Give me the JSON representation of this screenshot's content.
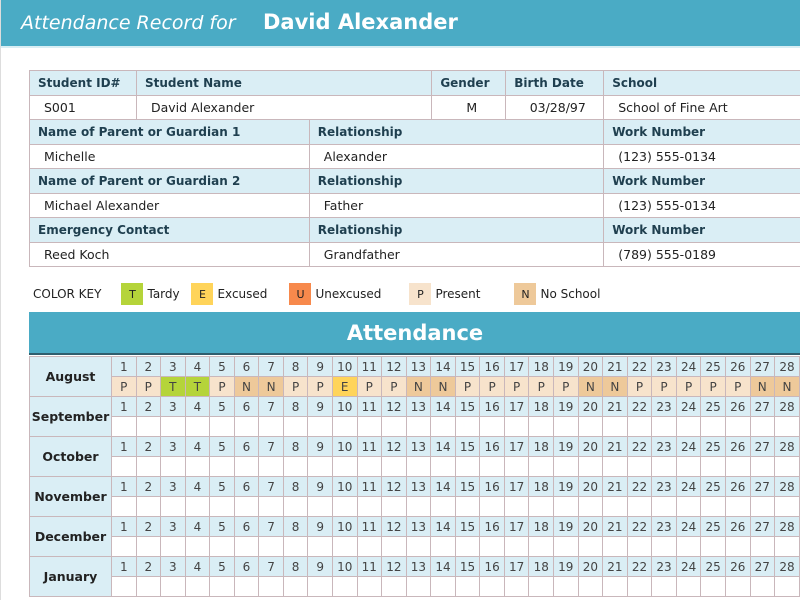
{
  "title": {
    "prefix": "Attendance Record for",
    "name": "David Alexander"
  },
  "student": {
    "headers": [
      "Student ID#",
      "Student Name",
      "Gender",
      "Birth Date",
      "School"
    ],
    "values": [
      "S001",
      "David Alexander",
      "M",
      "03/28/97",
      "School of Fine Art"
    ]
  },
  "contacts": [
    {
      "h": [
        "Name of Parent or Guardian 1",
        "Relationship",
        "Work Number"
      ],
      "v": [
        "Michelle",
        "Alexander",
        "(123) 555-0134"
      ]
    },
    {
      "h": [
        "Name of Parent or Guardian 2",
        "Relationship",
        "Work Number"
      ],
      "v": [
        "Michael Alexander",
        "Father",
        "(123) 555-0134"
      ]
    },
    {
      "h": [
        "Emergency Contact",
        "Relationship",
        "Work Number"
      ],
      "v": [
        "Reed Koch",
        "Grandfather",
        "(789) 555-0189"
      ]
    }
  ],
  "color_key": {
    "label": "COLOR KEY",
    "items": [
      {
        "code": "T",
        "label": "Tardy",
        "color": "#b5d43a"
      },
      {
        "code": "E",
        "label": "Excused",
        "color": "#ffd45a"
      },
      {
        "code": "U",
        "label": "Unexcused",
        "color": "#f7894c"
      },
      {
        "code": "P",
        "label": "Present",
        "color": "#f7e3cc"
      },
      {
        "code": "N",
        "label": "No School",
        "color": "#eec99a"
      }
    ]
  },
  "attendance": {
    "title": "Attendance",
    "months": [
      {
        "name": "August",
        "days": [
          "P",
          "P",
          "T",
          "T",
          "P",
          "N",
          "N",
          "P",
          "P",
          "E",
          "P",
          "P",
          "N",
          "N",
          "P",
          "P",
          "P",
          "P",
          "P",
          "N",
          "N",
          "P",
          "P",
          "P",
          "P",
          "P",
          "N",
          "N"
        ]
      },
      {
        "name": "September",
        "days": []
      },
      {
        "name": "October",
        "days": []
      },
      {
        "name": "November",
        "days": []
      },
      {
        "name": "December",
        "days": []
      },
      {
        "name": "January",
        "days": []
      }
    ],
    "day_numbers": [
      "1",
      "2",
      "3",
      "4",
      "5",
      "6",
      "7",
      "8",
      "9",
      "10",
      "11",
      "12",
      "13",
      "14",
      "15",
      "16",
      "17",
      "18",
      "19",
      "20",
      "21",
      "22",
      "23",
      "24",
      "25",
      "26",
      "27",
      "28"
    ]
  }
}
